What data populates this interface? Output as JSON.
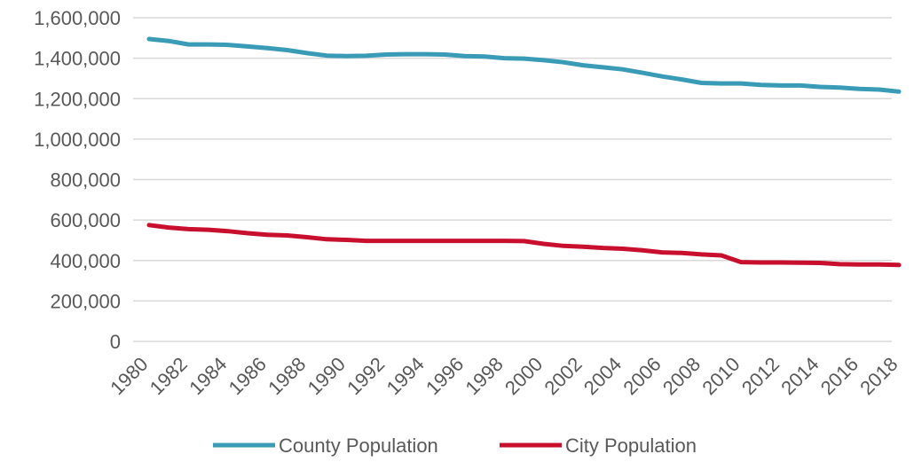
{
  "chart_data": {
    "type": "line",
    "title": "",
    "xlabel": "",
    "ylabel": "",
    "ylim": [
      0,
      1600000
    ],
    "yticks": [
      0,
      200000,
      400000,
      600000,
      800000,
      1000000,
      1200000,
      1400000,
      1600000
    ],
    "ytick_labels": [
      "0",
      "200,000",
      "400,000",
      "600,000",
      "800,000",
      "1,000,000",
      "1,200,000",
      "1,400,000",
      "1,600,000"
    ],
    "x": [
      1980,
      1981,
      1982,
      1983,
      1984,
      1985,
      1986,
      1987,
      1988,
      1989,
      1990,
      1991,
      1992,
      1993,
      1994,
      1995,
      1996,
      1997,
      1998,
      1999,
      2000,
      2001,
      2002,
      2003,
      2004,
      2005,
      2006,
      2007,
      2008,
      2009,
      2010,
      2011,
      2012,
      2013,
      2014,
      2015,
      2016,
      2017,
      2018
    ],
    "xtick_labels": [
      "1980",
      "1982",
      "1984",
      "1986",
      "1988",
      "1990",
      "1992",
      "1994",
      "1996",
      "1998",
      "2000",
      "2002",
      "2004",
      "2006",
      "2008",
      "2010",
      "2012",
      "2014",
      "2016",
      "2018"
    ],
    "grid": true,
    "legend_position": "bottom",
    "series": [
      {
        "name": "County Population",
        "color": "#3a9bb7",
        "values": [
          1495000,
          1485000,
          1468000,
          1468000,
          1466000,
          1458000,
          1450000,
          1440000,
          1425000,
          1413000,
          1410000,
          1412000,
          1418000,
          1420000,
          1420000,
          1418000,
          1410000,
          1408000,
          1400000,
          1398000,
          1390000,
          1380000,
          1365000,
          1355000,
          1345000,
          1328000,
          1310000,
          1295000,
          1278000,
          1275000,
          1275000,
          1268000,
          1265000,
          1265000,
          1258000,
          1255000,
          1248000,
          1245000,
          1235000
        ]
      },
      {
        "name": "City Population",
        "color": "#c8102e",
        "values": [
          575000,
          563000,
          555000,
          552000,
          545000,
          535000,
          527000,
          524000,
          515000,
          505000,
          502000,
          497000,
          497000,
          497000,
          497000,
          497000,
          497000,
          497000,
          497000,
          496000,
          482000,
          472000,
          468000,
          462000,
          458000,
          450000,
          440000,
          437000,
          430000,
          425000,
          392000,
          390000,
          390000,
          389000,
          388000,
          382000,
          380000,
          380000,
          378000
        ]
      }
    ]
  }
}
